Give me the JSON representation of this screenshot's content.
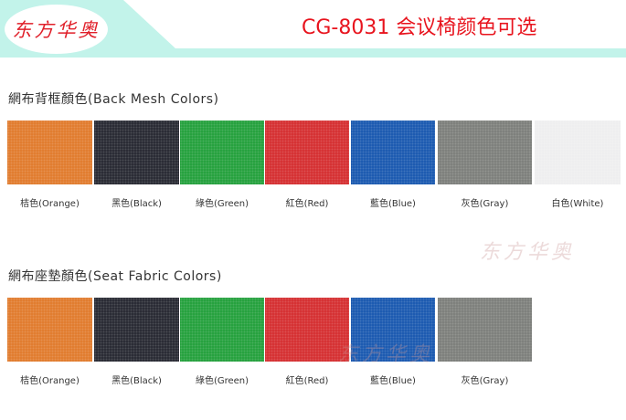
{
  "header": {
    "logo_text": "东方华奥",
    "title": "CG-8031 会议椅颜色可选"
  },
  "sections": [
    {
      "title": "網布背框顏色(Back Mesh Colors)",
      "swatches": [
        {
          "label": "桔色(Orange)",
          "color": "#e07828"
        },
        {
          "label": "黑色(Black)",
          "color": "#23242e"
        },
        {
          "label": "綠色(Green)",
          "color": "#1f9e38"
        },
        {
          "label": "紅色(Red)",
          "color": "#d42a2c"
        },
        {
          "label": "藍色(Blue)",
          "color": "#1555ae"
        },
        {
          "label": "灰色(Gray)",
          "color": "#7a7c78"
        },
        {
          "label": "白色(White)",
          "color": "#eeeeef"
        }
      ]
    },
    {
      "title": "網布座墊顏色(Seat Fabric Colors)",
      "swatches": [
        {
          "label": "桔色(Orange)",
          "color": "#e07828"
        },
        {
          "label": "黑色(Black)",
          "color": "#23242e"
        },
        {
          "label": "綠色(Green)",
          "color": "#1f9e38"
        },
        {
          "label": "紅色(Red)",
          "color": "#d42a2c"
        },
        {
          "label": "藍色(Blue)",
          "color": "#1555ae"
        },
        {
          "label": "灰色(Gray)",
          "color": "#7a7c78"
        }
      ]
    }
  ],
  "watermark": "东方华奥"
}
